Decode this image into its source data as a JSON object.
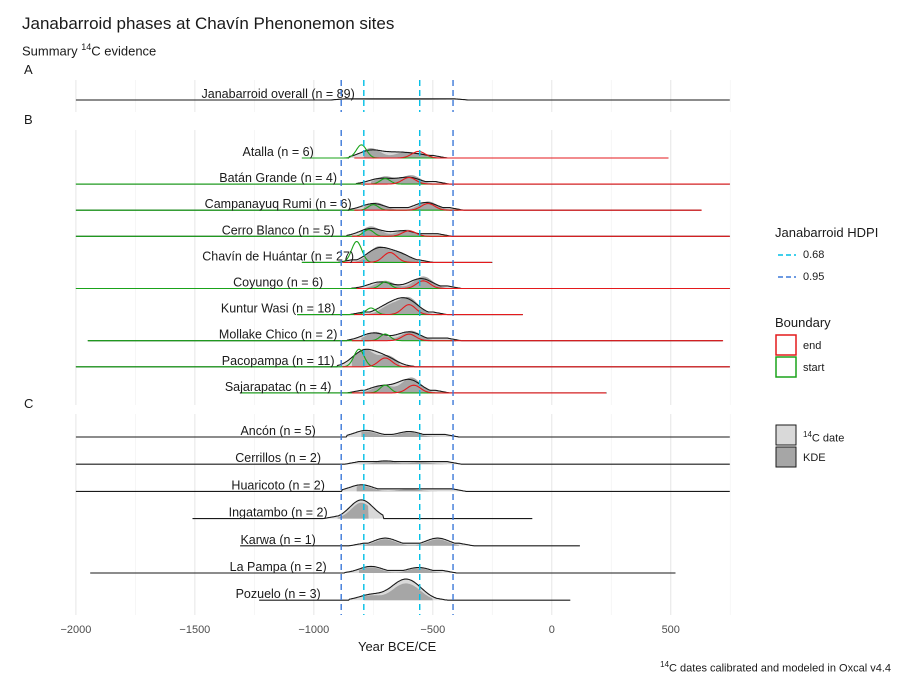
{
  "title": "Janabarroid phases at Chavín Phenonemon sites",
  "subtitle": {
    "prefix": "Summary ",
    "sup": "14",
    "suffix": "C evidence"
  },
  "caption": {
    "sup": "14",
    "text": "C dates calibrated and modeled in Oxcal v4.4"
  },
  "chart_data": {
    "type": "area",
    "xlabel": "Year BCE/CE",
    "xlim": [
      -2050,
      770
    ],
    "xticks": [
      -2000,
      -1500,
      -1000,
      -500,
      0,
      500
    ],
    "xtick_labels": [
      "−2000",
      "−1500",
      "−1000",
      "−500",
      "0",
      "500"
    ],
    "grid": true,
    "hdpi_lines": {
      "0.68": [
        -790,
        -555
      ],
      "0.95": [
        -885,
        -415
      ]
    },
    "panels": [
      {
        "label": "A",
        "rows": [
          {
            "name": "Janabarroid overall (n = 89)",
            "range": [
              -2000,
              750
            ],
            "core": [
              -870,
              -410
            ],
            "peaks": [
              [
                -700,
                0.1
              ],
              [
                -560,
                0.08
              ]
            ],
            "kde": [],
            "start_peaks": [],
            "end_peaks": []
          }
        ]
      },
      {
        "label": "B",
        "rows": [
          {
            "name": "Atalla (n = 6)",
            "range": [
              -1050,
              490
            ],
            "core": [
              -790,
              -500
            ],
            "peaks": [
              [
                -760,
                0.35
              ],
              [
                -650,
                0.22
              ],
              [
                -560,
                0.15
              ]
            ],
            "kde": [
              [
                -760,
                0.45
              ],
              [
                -620,
                0.25
              ],
              [
                -540,
                0.18
              ]
            ],
            "start_peaks": [
              [
                -800,
                0.6
              ]
            ],
            "end_peaks": [
              [
                -560,
                0.3
              ]
            ]
          },
          {
            "name": "Batán Grande (n = 4)",
            "range": [
              -2000,
              750
            ],
            "core": [
              -760,
              -490
            ],
            "peaks": [
              [
                -720,
                0.25
              ],
              [
                -600,
                0.3
              ]
            ],
            "kde": [
              [
                -700,
                0.35
              ],
              [
                -590,
                0.4
              ]
            ],
            "start_peaks": [
              [
                -700,
                0.25
              ]
            ],
            "end_peaks": [
              [
                -600,
                0.3
              ]
            ]
          },
          {
            "name": "Campanayuq Rumi (n = 6)",
            "range": [
              -2000,
              630
            ],
            "core": [
              -790,
              -430
            ],
            "peaks": [
              [
                -750,
                0.3
              ],
              [
                -530,
                0.35
              ]
            ],
            "kde": [
              [
                -740,
                0.35
              ],
              [
                -520,
                0.4
              ]
            ],
            "start_peaks": [
              [
                -750,
                0.25
              ]
            ],
            "end_peaks": [
              [
                -520,
                0.3
              ]
            ]
          },
          {
            "name": "Cerro Blanco (n = 5)",
            "range": [
              -2000,
              750
            ],
            "core": [
              -800,
              -480
            ],
            "peaks": [
              [
                -760,
                0.35
              ],
              [
                -620,
                0.25
              ]
            ],
            "kde": [
              [
                -760,
                0.45
              ],
              [
                -610,
                0.3
              ]
            ],
            "start_peaks": [
              [
                -770,
                0.3
              ]
            ],
            "end_peaks": [
              [
                -600,
                0.25
              ]
            ]
          },
          {
            "name": "Chavín de Huántar (n = 27)",
            "range": [
              -1050,
              -250
            ],
            "core": [
              -840,
              -560
            ],
            "peaks": [
              [
                -730,
                0.6
              ],
              [
                -640,
                0.35
              ]
            ],
            "kde": [
              [
                -730,
                0.7
              ],
              [
                -640,
                0.45
              ]
            ],
            "start_peaks": [
              [
                -820,
                0.95
              ]
            ],
            "end_peaks": [
              [
                -680,
                0.45
              ]
            ]
          },
          {
            "name": "Coyungo (n = 6)",
            "range": [
              -2000,
              750
            ],
            "core": [
              -780,
              -440
            ],
            "peaks": [
              [
                -720,
                0.3
              ],
              [
                -550,
                0.45
              ]
            ],
            "kde": [
              [
                -700,
                0.35
              ],
              [
                -540,
                0.55
              ]
            ],
            "start_peaks": [
              [
                -700,
                0.3
              ]
            ],
            "end_peaks": [
              [
                -540,
                0.35
              ]
            ]
          },
          {
            "name": "Kuntur Wasi (n = 18)",
            "range": [
              -1070,
              -120
            ],
            "core": [
              -790,
              -500
            ],
            "peaks": [
              [
                -690,
                0.35
              ],
              [
                -610,
                0.65
              ]
            ],
            "kde": [
              [
                -680,
                0.4
              ],
              [
                -600,
                0.75
              ]
            ],
            "start_peaks": [
              [
                -760,
                0.3
              ]
            ],
            "end_peaks": [
              [
                -600,
                0.45
              ]
            ]
          },
          {
            "name": "Mollake Chico (n = 2)",
            "range": [
              -1950,
              720
            ],
            "core": [
              -800,
              -440
            ],
            "peaks": [
              [
                -750,
                0.35
              ],
              [
                -600,
                0.4
              ]
            ],
            "kde": [
              [
                -740,
                0.4
              ],
              [
                -590,
                0.45
              ]
            ],
            "start_peaks": [
              [
                -700,
                0.3
              ]
            ],
            "end_peaks": [
              [
                -600,
                0.3
              ]
            ]
          },
          {
            "name": "Pacopampa (n = 11)",
            "range": [
              -2000,
              750
            ],
            "core": [
              -840,
              -640
            ],
            "peaks": [
              [
                -790,
                0.7
              ],
              [
                -700,
                0.4
              ]
            ],
            "kde": [
              [
                -790,
                0.8
              ],
              [
                -690,
                0.5
              ]
            ],
            "start_peaks": [
              [
                -810,
                0.8
              ]
            ],
            "end_peaks": [
              [
                -700,
                0.4
              ]
            ]
          },
          {
            "name": "Sajarapatac (n = 4)",
            "range": [
              -1310,
              230
            ],
            "core": [
              -800,
              -490
            ],
            "peaks": [
              [
                -720,
                0.3
              ],
              [
                -600,
                0.6
              ]
            ],
            "kde": [
              [
                -710,
                0.35
              ],
              [
                -590,
                0.7
              ]
            ],
            "start_peaks": [
              [
                -700,
                0.35
              ]
            ],
            "end_peaks": [
              [
                -580,
                0.35
              ]
            ]
          }
        ]
      },
      {
        "label": "C",
        "rows": [
          {
            "name": "Ancón (n = 5)",
            "range": [
              -2000,
              750
            ],
            "core": [
              -800,
              -450
            ],
            "peaks": [
              [
                -780,
                0.3
              ],
              [
                -600,
                0.25
              ]
            ],
            "kde": [],
            "start_peaks": [],
            "end_peaks": []
          },
          {
            "name": "Cerrillos (n = 2)",
            "range": [
              -2000,
              750
            ],
            "core": [
              -810,
              -440
            ],
            "peaks": [
              [
                -700,
                0.15
              ],
              [
                -550,
                0.1
              ]
            ],
            "kde": [],
            "start_peaks": [],
            "end_peaks": []
          },
          {
            "name": "Huaricoto (n = 2)",
            "range": [
              -2000,
              750
            ],
            "core": [
              -820,
              -420
            ],
            "peaks": [
              [
                -800,
                0.3
              ],
              [
                -600,
                0.12
              ]
            ],
            "kde": [],
            "start_peaks": [],
            "end_peaks": []
          },
          {
            "name": "Ingatambo (n = 2)",
            "range": [
              -1510,
              -80
            ],
            "core": [
              -900,
              -770
            ],
            "peaks": [
              [
                -800,
                0.85
              ]
            ],
            "kde": [],
            "start_peaks": [],
            "end_peaks": []
          },
          {
            "name": "Karwa (n = 1)",
            "range": [
              -1310,
              120
            ],
            "core": [
              -790,
              -390
            ],
            "peaks": [
              [
                -700,
                0.35
              ],
              [
                -480,
                0.35
              ]
            ],
            "kde": [],
            "start_peaks": [],
            "end_peaks": []
          },
          {
            "name": "La Pampa (n = 2)",
            "range": [
              -1940,
              520
            ],
            "core": [
              -810,
              -460
            ],
            "peaks": [
              [
                -760,
                0.3
              ],
              [
                -560,
                0.25
              ]
            ],
            "kde": [],
            "start_peaks": [],
            "end_peaks": []
          },
          {
            "name": "Pozuelo (n = 3)",
            "range": [
              -1230,
              80
            ],
            "core": [
              -790,
              -500
            ],
            "peaks": [
              [
                -760,
                0.25
              ],
              [
                -640,
                0.6
              ],
              [
                -580,
                0.55
              ]
            ],
            "kde": [],
            "start_peaks": [],
            "end_peaks": []
          }
        ]
      }
    ]
  },
  "legend": {
    "hdpi": {
      "title": "Janabarroid HDPI",
      "items": [
        {
          "label": "0.68",
          "color": "#00bfe6"
        },
        {
          "label": "0.95",
          "color": "#3c78d8"
        }
      ]
    },
    "boundary": {
      "title": "Boundary",
      "items": [
        {
          "label": "end",
          "color": "#e41a1c"
        },
        {
          "label": "start",
          "color": "#1aa31a"
        }
      ]
    },
    "fill": {
      "items": [
        {
          "label_sup": "14",
          "label": "C date",
          "color": "#d9d9d9"
        },
        {
          "label": "KDE",
          "color": "#a6a6a6"
        }
      ]
    }
  }
}
